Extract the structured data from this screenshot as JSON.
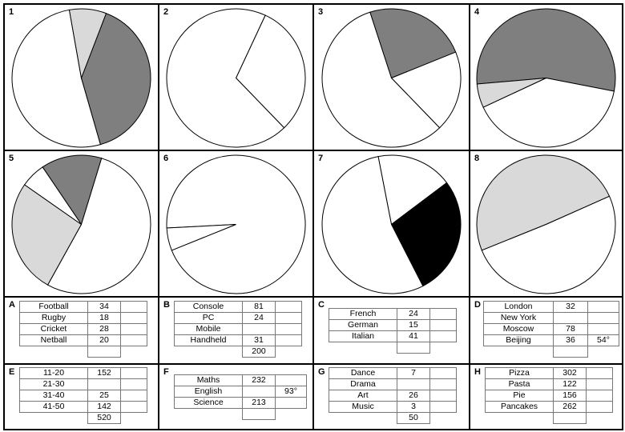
{
  "pies": [
    {
      "label": "1",
      "slices": [
        {
          "from": 21,
          "to": 164,
          "fill": "#7f7f7f"
        },
        {
          "from": 164,
          "to": 350,
          "fill": "#ffffff"
        },
        {
          "from": 350,
          "to": 381,
          "fill": "#d9d9d9"
        }
      ]
    },
    {
      "label": "2",
      "slices": [
        {
          "from": 25,
          "to": 136,
          "fill": "#ffffff"
        },
        {
          "from": 136,
          "to": 385,
          "fill": "#ffffff"
        }
      ]
    },
    {
      "label": "3",
      "slices": [
        {
          "from": -18,
          "to": 68,
          "fill": "#7f7f7f"
        },
        {
          "from": 68,
          "to": 136,
          "fill": "#ffffff"
        },
        {
          "from": 136,
          "to": 342,
          "fill": "#ffffff"
        }
      ]
    },
    {
      "label": "4",
      "slices": [
        {
          "from": -95,
          "to": 101,
          "fill": "#7f7f7f"
        },
        {
          "from": 101,
          "to": 245,
          "fill": "#ffffff"
        },
        {
          "from": 245,
          "to": 265,
          "fill": "#d9d9d9"
        }
      ]
    },
    {
      "label": "5",
      "slices": [
        {
          "from": -34,
          "to": 17,
          "fill": "#7f7f7f"
        },
        {
          "from": 17,
          "to": 209,
          "fill": "#ffffff"
        },
        {
          "from": 209,
          "to": 305,
          "fill": "#d9d9d9"
        },
        {
          "from": 305,
          "to": 326,
          "fill": "#ffffff"
        }
      ]
    },
    {
      "label": "6",
      "slices": [
        {
          "from": -93,
          "to": 248,
          "fill": "#ffffff"
        },
        {
          "from": 248,
          "to": 267,
          "fill": "#ffffff"
        }
      ]
    },
    {
      "label": "7",
      "slices": [
        {
          "from": -11,
          "to": 53,
          "fill": "#ffffff"
        },
        {
          "from": 53,
          "to": 153,
          "fill": "#000000"
        },
        {
          "from": 153,
          "to": 349,
          "fill": "#ffffff"
        }
      ]
    },
    {
      "label": "8",
      "slices": [
        {
          "from": -112,
          "to": 66,
          "fill": "#d9d9d9"
        },
        {
          "from": 66,
          "to": 248,
          "fill": "#ffffff"
        }
      ]
    }
  ],
  "tables": [
    {
      "label": "A",
      "rows": [
        {
          "name": "Football",
          "value": "34",
          "angle": ""
        },
        {
          "name": "Rugby",
          "value": "18",
          "angle": ""
        },
        {
          "name": "Cricket",
          "value": "28",
          "angle": ""
        },
        {
          "name": "Netball",
          "value": "20",
          "angle": ""
        }
      ],
      "total": ""
    },
    {
      "label": "B",
      "rows": [
        {
          "name": "Console",
          "value": "81",
          "angle": ""
        },
        {
          "name": "PC",
          "value": "24",
          "angle": ""
        },
        {
          "name": "Mobile",
          "value": "",
          "angle": ""
        },
        {
          "name": "Handheld",
          "value": "31",
          "angle": ""
        }
      ],
      "total": "200"
    },
    {
      "label": "C",
      "rows": [
        {
          "name": "French",
          "value": "24",
          "angle": ""
        },
        {
          "name": "German",
          "value": "15",
          "angle": ""
        },
        {
          "name": "Italian",
          "value": "41",
          "angle": ""
        }
      ],
      "total": ""
    },
    {
      "label": "D",
      "rows": [
        {
          "name": "London",
          "value": "32",
          "angle": ""
        },
        {
          "name": "New York",
          "value": "",
          "angle": ""
        },
        {
          "name": "Moscow",
          "value": "78",
          "angle": ""
        },
        {
          "name": "Beijing",
          "value": "36",
          "angle": "54°"
        }
      ],
      "total": ""
    },
    {
      "label": "E",
      "rows": [
        {
          "name": "11-20",
          "value": "152",
          "angle": ""
        },
        {
          "name": "21-30",
          "value": "",
          "angle": ""
        },
        {
          "name": "31-40",
          "value": "25",
          "angle": ""
        },
        {
          "name": "41-50",
          "value": "142",
          "angle": ""
        }
      ],
      "total": "520"
    },
    {
      "label": "F",
      "rows": [
        {
          "name": "Maths",
          "value": "232",
          "angle": ""
        },
        {
          "name": "English",
          "value": "",
          "angle": "93°"
        },
        {
          "name": "Science",
          "value": "213",
          "angle": ""
        }
      ],
      "total": ""
    },
    {
      "label": "G",
      "rows": [
        {
          "name": "Dance",
          "value": "7",
          "angle": ""
        },
        {
          "name": "Drama",
          "value": "",
          "angle": ""
        },
        {
          "name": "Art",
          "value": "26",
          "angle": ""
        },
        {
          "name": "Music",
          "value": "3",
          "angle": ""
        }
      ],
      "total": "50"
    },
    {
      "label": "H",
      "rows": [
        {
          "name": "Pizza",
          "value": "302",
          "angle": ""
        },
        {
          "name": "Pasta",
          "value": "122",
          "angle": ""
        },
        {
          "name": "Pie",
          "value": "156",
          "angle": ""
        },
        {
          "name": "Pancakes",
          "value": "262",
          "angle": ""
        }
      ],
      "total": ""
    }
  ]
}
